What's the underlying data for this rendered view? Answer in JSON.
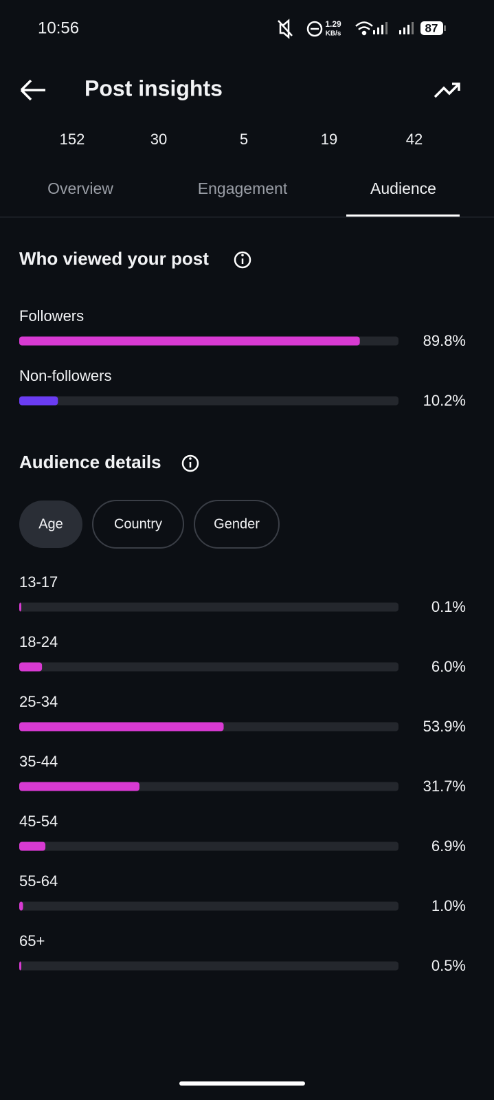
{
  "status_bar": {
    "time": "10:56",
    "speed": "1.29",
    "speed_unit": "KB/s",
    "battery": "87"
  },
  "header": {
    "title": "Post insights"
  },
  "stats": [
    152,
    30,
    5,
    19,
    42
  ],
  "tabs": [
    {
      "label": "Overview"
    },
    {
      "label": "Engagement"
    },
    {
      "label": "Audience",
      "selected": true
    }
  ],
  "viewers": {
    "title": "Who viewed your post",
    "items": [
      {
        "label": "Followers",
        "value": 89.8,
        "value_label": "89.8%",
        "color": "#d83ad2"
      },
      {
        "label": "Non-followers",
        "value": 10.2,
        "value_label": "10.2%",
        "color": "#6a3cf2"
      }
    ]
  },
  "audience_details": {
    "title": "Audience details",
    "filters": [
      {
        "label": "Age",
        "selected": true
      },
      {
        "label": "Country"
      },
      {
        "label": "Gender"
      }
    ],
    "items": [
      {
        "label": "13-17",
        "value": 0.1,
        "value_label": "0.1%",
        "color": "#d83ad2"
      },
      {
        "label": "18-24",
        "value": 6.0,
        "value_label": "6.0%",
        "color": "#d83ad2"
      },
      {
        "label": "25-34",
        "value": 53.9,
        "value_label": "53.9%",
        "color": "#d83ad2"
      },
      {
        "label": "35-44",
        "value": 31.7,
        "value_label": "31.7%",
        "color": "#d83ad2"
      },
      {
        "label": "45-54",
        "value": 6.9,
        "value_label": "6.9%",
        "color": "#d83ad2"
      },
      {
        "label": "55-64",
        "value": 1.0,
        "value_label": "1.0%",
        "color": "#d83ad2"
      },
      {
        "label": "65+",
        "value": 0.5,
        "value_label": "0.5%",
        "color": "#d83ad2"
      }
    ]
  }
}
